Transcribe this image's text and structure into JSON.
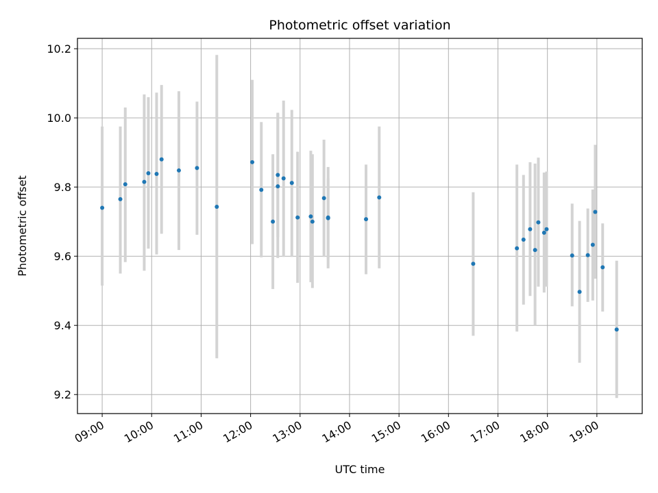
{
  "chart_data": {
    "type": "scatter",
    "title": "Photometric offset variation",
    "xlabel": "UTC time",
    "ylabel": "Photometric offset",
    "xlim": [
      "08:30",
      "19:55"
    ],
    "ylim": [
      9.145,
      10.23
    ],
    "grid": true,
    "x_tick_labels": [
      "09:00",
      "10:00",
      "11:00",
      "12:00",
      "13:00",
      "14:00",
      "15:00",
      "16:00",
      "17:00",
      "18:00",
      "19:00"
    ],
    "y_tick_labels": [
      "9.2",
      "9.4",
      "9.6",
      "9.8",
      "10.0",
      "10.2"
    ],
    "y_ticks": [
      9.2,
      9.4,
      9.6,
      9.8,
      10.0,
      10.2
    ],
    "point_color": "#1f77b4",
    "errorbar_color": "#d3d3d3",
    "points": [
      {
        "t": "09:00",
        "y": 9.74,
        "lo": 9.515,
        "hi": 9.975
      },
      {
        "t": "09:22",
        "y": 9.765,
        "lo": 9.55,
        "hi": 9.975
      },
      {
        "t": "09:28",
        "y": 9.808,
        "lo": 9.583,
        "hi": 10.03
      },
      {
        "t": "09:51",
        "y": 9.815,
        "lo": 9.558,
        "hi": 10.068
      },
      {
        "t": "09:56",
        "y": 9.84,
        "lo": 9.622,
        "hi": 10.06
      },
      {
        "t": "10:06",
        "y": 9.838,
        "lo": 9.605,
        "hi": 10.073
      },
      {
        "t": "10:12",
        "y": 9.88,
        "lo": 9.665,
        "hi": 10.095
      },
      {
        "t": "10:33",
        "y": 9.848,
        "lo": 9.618,
        "hi": 10.077
      },
      {
        "t": "10:55",
        "y": 9.855,
        "lo": 9.662,
        "hi": 10.047
      },
      {
        "t": "11:19",
        "y": 9.743,
        "lo": 9.305,
        "hi": 10.182
      },
      {
        "t": "12:02",
        "y": 9.872,
        "lo": 9.635,
        "hi": 10.11
      },
      {
        "t": "12:13",
        "y": 9.792,
        "lo": 9.597,
        "hi": 9.988
      },
      {
        "t": "12:27",
        "y": 9.7,
        "lo": 9.505,
        "hi": 9.895
      },
      {
        "t": "12:33",
        "y": 9.802,
        "lo": 9.595,
        "hi": 10.012
      },
      {
        "t": "12:33",
        "y": 9.835,
        "lo": 9.655,
        "hi": 10.015
      },
      {
        "t": "12:40",
        "y": 9.825,
        "lo": 9.598,
        "hi": 10.05
      },
      {
        "t": "12:50",
        "y": 9.812,
        "lo": 9.598,
        "hi": 10.023
      },
      {
        "t": "12:57",
        "y": 9.712,
        "lo": 9.523,
        "hi": 9.902
      },
      {
        "t": "13:13",
        "y": 9.715,
        "lo": 9.525,
        "hi": 9.905
      },
      {
        "t": "13:15",
        "y": 9.7,
        "lo": 9.508,
        "hi": 9.895
      },
      {
        "t": "13:29",
        "y": 9.768,
        "lo": 9.598,
        "hi": 9.937
      },
      {
        "t": "13:34",
        "y": 9.712,
        "lo": 9.565,
        "hi": 9.858
      },
      {
        "t": "13:34",
        "y": 9.71,
        "lo": 9.595,
        "hi": 9.825
      },
      {
        "t": "14:20",
        "y": 9.707,
        "lo": 9.548,
        "hi": 9.865
      },
      {
        "t": "14:36",
        "y": 9.77,
        "lo": 9.565,
        "hi": 9.975
      },
      {
        "t": "16:30",
        "y": 9.578,
        "lo": 9.37,
        "hi": 9.785
      },
      {
        "t": "17:23",
        "y": 9.623,
        "lo": 9.382,
        "hi": 9.865
      },
      {
        "t": "17:31",
        "y": 9.648,
        "lo": 9.46,
        "hi": 9.835
      },
      {
        "t": "17:39",
        "y": 9.678,
        "lo": 9.485,
        "hi": 9.872
      },
      {
        "t": "17:45",
        "y": 9.618,
        "lo": 9.4,
        "hi": 9.868
      },
      {
        "t": "17:49",
        "y": 9.698,
        "lo": 9.512,
        "hi": 9.885
      },
      {
        "t": "17:56",
        "y": 9.668,
        "lo": 9.495,
        "hi": 9.842
      },
      {
        "t": "17:59",
        "y": 9.678,
        "lo": 9.512,
        "hi": 9.845
      },
      {
        "t": "18:30",
        "y": 9.602,
        "lo": 9.455,
        "hi": 9.752
      },
      {
        "t": "18:39",
        "y": 9.497,
        "lo": 9.292,
        "hi": 9.702
      },
      {
        "t": "18:49",
        "y": 9.603,
        "lo": 9.468,
        "hi": 9.738
      },
      {
        "t": "18:55",
        "y": 9.633,
        "lo": 9.472,
        "hi": 9.793
      },
      {
        "t": "18:58",
        "y": 9.728,
        "lo": 9.535,
        "hi": 9.922
      },
      {
        "t": "19:07",
        "y": 9.568,
        "lo": 9.44,
        "hi": 9.695
      },
      {
        "t": "19:24",
        "y": 9.388,
        "lo": 9.19,
        "hi": 9.587
      }
    ]
  }
}
